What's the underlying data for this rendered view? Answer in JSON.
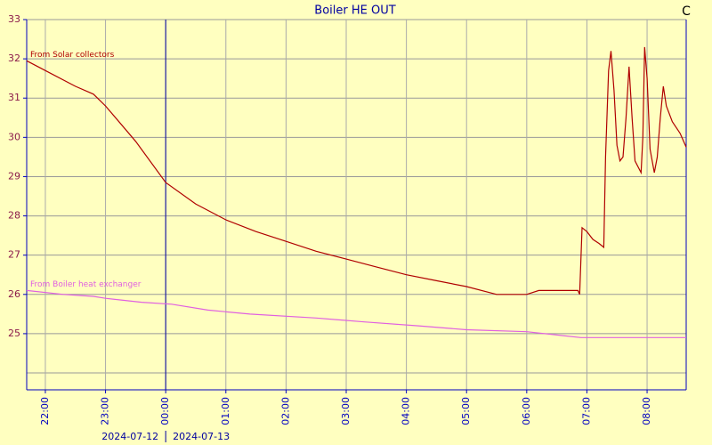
{
  "chart_data": {
    "type": "line",
    "title": "Boiler HE OUT",
    "unit_label": "C",
    "xlim": [
      21.69,
      32.65
    ],
    "ylim": [
      23.57,
      33
    ],
    "xticks": [
      {
        "value": 22,
        "label": "22:00"
      },
      {
        "value": 23,
        "label": "23:00"
      },
      {
        "value": 24,
        "label": "00:00"
      },
      {
        "value": 25,
        "label": "01:00"
      },
      {
        "value": 26,
        "label": "02:00"
      },
      {
        "value": 27,
        "label": "03:00"
      },
      {
        "value": 28,
        "label": "04:00"
      },
      {
        "value": 29,
        "label": "05:00"
      },
      {
        "value": 30,
        "label": "06:00"
      },
      {
        "value": 31,
        "label": "07:00"
      },
      {
        "value": 32,
        "label": "08:00"
      }
    ],
    "yticks": [
      25,
      26,
      27,
      28,
      29,
      30,
      31,
      32,
      33
    ],
    "unlabeled_yticks": [
      24
    ],
    "day_boundary": 24,
    "date_labels": [
      "2024-07-12",
      "2024-07-13"
    ],
    "grid": true,
    "series": [
      {
        "name": "From Solar collectors",
        "color": "#b00000",
        "x": [
          21.69,
          22.0,
          22.5,
          22.8,
          23.0,
          23.5,
          24.0,
          24.5,
          25.0,
          25.5,
          26.0,
          26.5,
          27.0,
          27.5,
          28.0,
          28.5,
          29.0,
          29.5,
          30.0,
          30.2,
          30.85,
          30.88,
          30.92,
          31.0,
          31.1,
          31.2,
          31.28,
          31.31,
          31.36,
          31.4,
          31.45,
          31.5,
          31.55,
          31.6,
          31.65,
          31.7,
          31.75,
          31.8,
          31.9,
          31.93,
          31.96,
          32.0,
          32.05,
          32.12,
          32.17,
          32.22,
          32.27,
          32.32,
          32.42,
          32.55,
          32.65
        ],
        "values": [
          31.95,
          31.7,
          31.3,
          31.1,
          30.8,
          29.9,
          28.85,
          28.3,
          27.9,
          27.6,
          27.35,
          27.1,
          26.9,
          26.7,
          26.5,
          26.35,
          26.2,
          26.0,
          26.0,
          26.1,
          26.1,
          26.0,
          27.7,
          27.6,
          27.4,
          27.3,
          27.2,
          29.5,
          31.7,
          32.2,
          31.2,
          29.8,
          29.4,
          29.5,
          30.5,
          31.8,
          30.5,
          29.4,
          29.1,
          30.0,
          32.3,
          31.5,
          29.7,
          29.1,
          29.5,
          30.5,
          31.3,
          30.8,
          30.4,
          30.1,
          29.75
        ]
      },
      {
        "name": "From Boiler heat exchanger",
        "color": "#e060e0",
        "x": [
          21.69,
          22.3,
          22.8,
          23.0,
          23.6,
          24.1,
          24.7,
          25.4,
          26.5,
          27.3,
          28.2,
          29.0,
          30.0,
          30.9,
          32.65
        ],
        "values": [
          26.1,
          26.0,
          25.95,
          25.9,
          25.8,
          25.75,
          25.6,
          25.5,
          25.4,
          25.3,
          25.2,
          25.1,
          25.05,
          24.9,
          24.9
        ]
      }
    ]
  }
}
